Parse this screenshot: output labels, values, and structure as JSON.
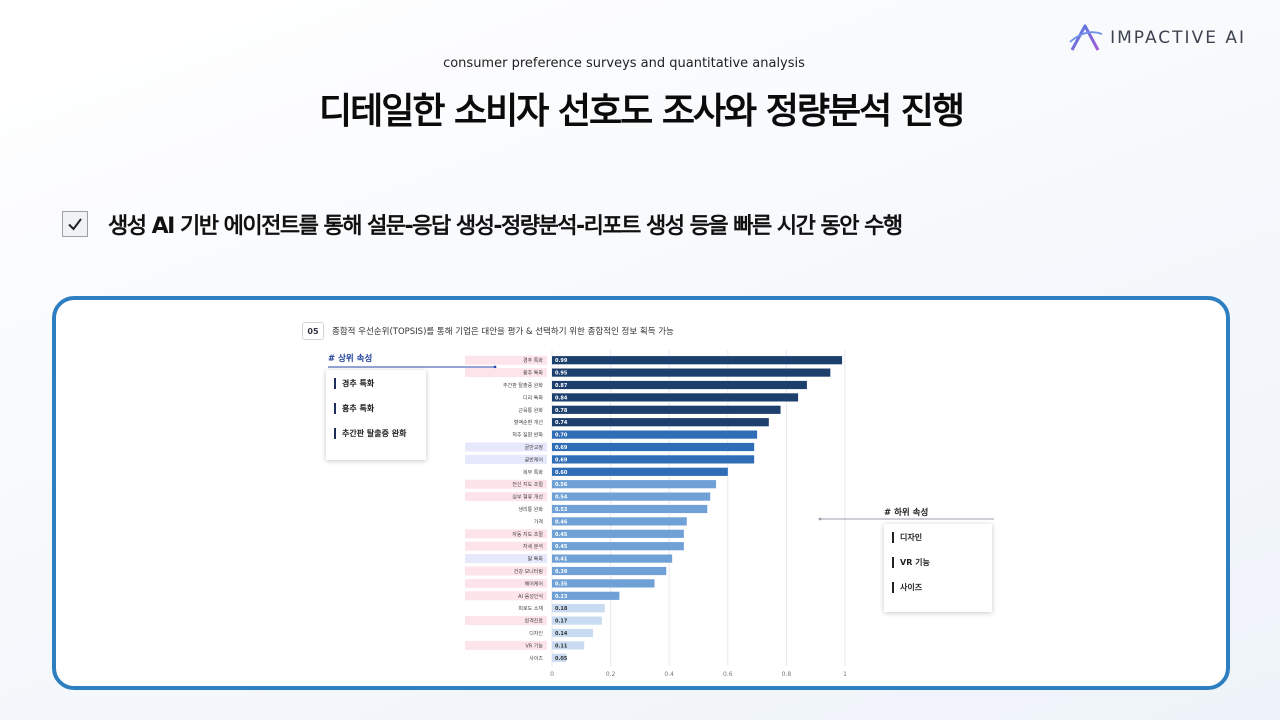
{
  "logo": {
    "text": "IMPACTIVE AI",
    "icon": "a-logo-icon"
  },
  "subtitle": "consumer preference surveys and quantitative analysis",
  "title": "디테일한 소비자 선호도 조사와 정량분석 진행",
  "bullet": {
    "icon": "checkbox-icon",
    "text": "생성 AI 기반 에이전트를 통해 설문-응답 생성-정량분석-리포트 생성 등을 빠른 시간 동안 수행"
  },
  "panel": {
    "number": "05",
    "header": "종합적 우선순위(TOPSIS)를 통해 기업은 대안을 평가 & 선택하기 위한 종합적인 정보 획득 가능",
    "upper_title": "# 상위 속성",
    "upper_items": [
      "경추 특화",
      "흉추 특화",
      "추간판 탈출증 완화"
    ],
    "lower_title": "# 하위 속성",
    "lower_items": [
      "디자인",
      "VR 기능",
      "사이즈"
    ]
  },
  "colors": {
    "frame": "#2d7fc1",
    "bar_dark": "#1c3f6e",
    "bar_mid": "#2f6db6",
    "bar_light": "#6fa0d6",
    "bar_pale": "#c9dbf0",
    "highlight_pink": "#fde4ea",
    "highlight_lavender": "#e6e8fb"
  },
  "chart_data": {
    "type": "bar",
    "orientation": "horizontal",
    "categories": [
      "경추 특화",
      "흉추 특화",
      "추간판 탈출증 완화",
      "디리 특화",
      "근육통 완화",
      "혈액순환 개선",
      "척추 질환 완화",
      "골반교정",
      "골반케어",
      "복부 특화",
      "전신 지도 조절",
      "심부 혈류 개선",
      "생리통 완화",
      "가격",
      "자동 지도 조절",
      "자세 분석",
      "팔 특화",
      "건강 모니터링",
      "헤어케어",
      "AI 음성인식",
      "피로도 소재",
      "원격진료",
      "디자인",
      "VR 기능",
      "사이즈"
    ],
    "values": [
      0.99,
      0.95,
      0.87,
      0.84,
      0.78,
      0.74,
      0.7,
      0.69,
      0.69,
      0.6,
      0.56,
      0.54,
      0.53,
      0.46,
      0.45,
      0.45,
      0.41,
      0.39,
      0.35,
      0.23,
      0.18,
      0.17,
      0.14,
      0.11,
      0.05
    ],
    "labels": [
      "0.99",
      "0.95",
      "0.87",
      "0.84",
      "0.78",
      "0.74",
      "0.70",
      "0.69",
      "0.69",
      "0.60",
      "0.56",
      "0.54",
      "0.53",
      "0.46",
      "0.45",
      "0.45",
      "0.41",
      "0.39",
      "0.35",
      "0.23",
      "0.18",
      "0.17",
      "0.14",
      "0.11",
      "0.05"
    ],
    "category_highlight": [
      "pink",
      "pink",
      "none",
      "none",
      "none",
      "none",
      "none",
      "lavender",
      "lavender",
      "none",
      "pink",
      "pink",
      "none",
      "none",
      "pink",
      "pink",
      "lavender",
      "pink",
      "pink",
      "pink",
      "none",
      "pink",
      "none",
      "pink",
      "none"
    ],
    "xlim": [
      0,
      1
    ],
    "xticks": [
      "0",
      "0.2",
      "0.4",
      "0.6",
      "0.8",
      "1"
    ],
    "grid": true,
    "title": "",
    "xlabel": "",
    "ylabel": ""
  }
}
